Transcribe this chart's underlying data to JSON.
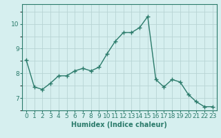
{
  "x": [
    0,
    1,
    2,
    3,
    4,
    5,
    6,
    7,
    8,
    9,
    10,
    11,
    12,
    13,
    14,
    15,
    16,
    17,
    18,
    19,
    20,
    21,
    22,
    23
  ],
  "y": [
    8.55,
    7.45,
    7.35,
    7.6,
    7.9,
    7.9,
    8.1,
    8.2,
    8.1,
    8.25,
    8.8,
    9.3,
    9.65,
    9.65,
    9.85,
    10.3,
    7.75,
    7.45,
    7.75,
    7.65,
    7.15,
    6.85,
    6.65,
    6.65
  ],
  "line_color": "#2a7a6a",
  "marker": "+",
  "marker_size": 4,
  "line_width": 1.0,
  "bg_color": "#d6efef",
  "grid_color": "#b8d4d4",
  "xlabel": "Humidex (Indice chaleur)",
  "xlabel_fontsize": 7,
  "tick_fontsize": 6.5,
  "ylim": [
    6.5,
    10.8
  ],
  "xlim": [
    -0.5,
    23.5
  ],
  "yticks": [
    7,
    8,
    9,
    10
  ],
  "xticks": [
    0,
    1,
    2,
    3,
    4,
    5,
    6,
    7,
    8,
    9,
    10,
    11,
    12,
    13,
    14,
    15,
    16,
    17,
    18,
    19,
    20,
    21,
    22,
    23
  ]
}
